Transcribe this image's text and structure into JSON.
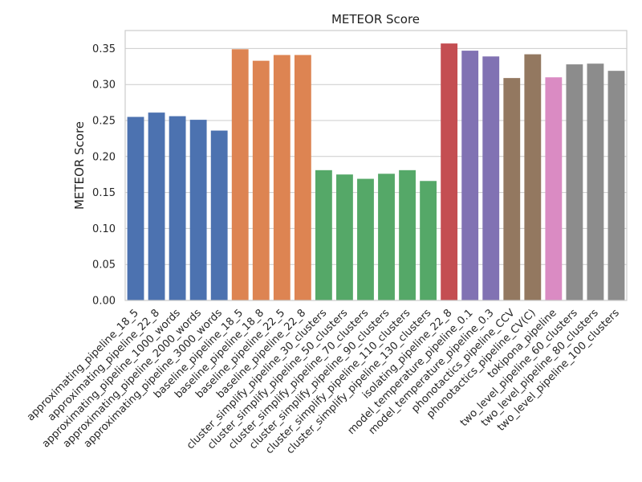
{
  "chart_data": {
    "type": "bar",
    "title": "METEOR Score",
    "xlabel": "",
    "ylabel": "METEOR Score",
    "ylim": [
      0,
      0.375
    ],
    "yticks": [
      "0.00",
      "0.05",
      "0.10",
      "0.15",
      "0.20",
      "0.25",
      "0.30",
      "0.35"
    ],
    "grid": true,
    "categories": [
      "approximating_pipeline_18_5",
      "approximating_pipeline_22_8",
      "approximating_pipeline_1000_words",
      "approximating_pipeline_2000_words",
      "approximating_pipeline_3000_words",
      "baseline_pipeline_18_5",
      "baseline_pipeline_18_8",
      "baseline_pipeline_22_5",
      "baseline_pipeline_22_8",
      "cluster_simplify_pipeline_30_clusters",
      "cluster_simplify_pipeline_50_clusters",
      "cluster_simplify_pipeline_70_clusters",
      "cluster_simplify_pipeline_90_clusters",
      "cluster_simplify_pipeline_110_clusters",
      "cluster_simplify_pipeline_130_clusters",
      "isolating_pipeline_22_8",
      "model_temperature_pipeline_0.1",
      "model_temperature_pipeline_0.3",
      "phonotactics_pipeline_CCV",
      "phonotactics_pipeline_CV(C)",
      "tokipona_pipeline",
      "two_level_pipeline_60_clusters",
      "two_level_pipeline_80_clusters",
      "two_level_pipeline_100_clusters"
    ],
    "values": [
      0.255,
      0.261,
      0.256,
      0.251,
      0.236,
      0.349,
      0.333,
      0.341,
      0.341,
      0.181,
      0.175,
      0.169,
      0.176,
      0.181,
      0.166,
      0.357,
      0.347,
      0.339,
      0.309,
      0.342,
      0.31,
      0.328,
      0.329,
      0.319
    ],
    "colors": [
      "#4c72b0",
      "#4c72b0",
      "#4c72b0",
      "#4c72b0",
      "#4c72b0",
      "#dd8452",
      "#dd8452",
      "#dd8452",
      "#dd8452",
      "#55a868",
      "#55a868",
      "#55a868",
      "#55a868",
      "#55a868",
      "#55a868",
      "#c44e52",
      "#8172b3",
      "#8172b3",
      "#937860",
      "#937860",
      "#da8bc3",
      "#8c8c8c",
      "#8c8c8c",
      "#8c8c8c"
    ]
  }
}
